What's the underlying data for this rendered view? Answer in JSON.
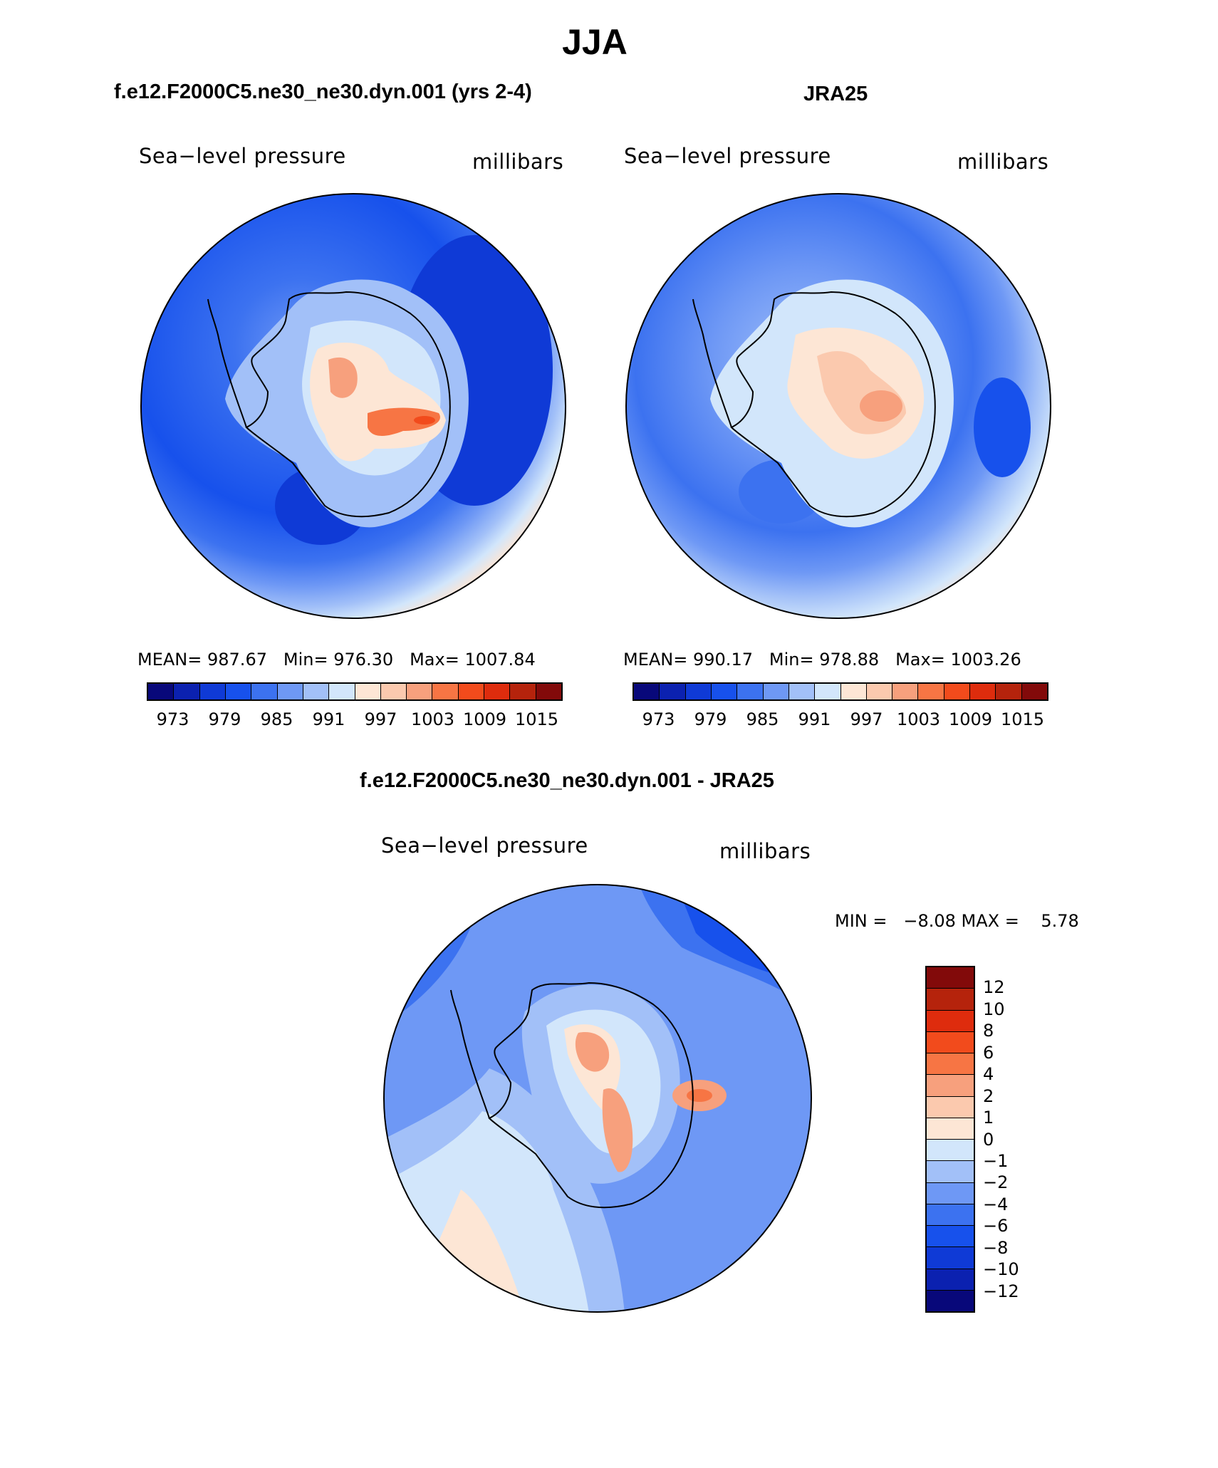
{
  "figure": {
    "title": "JJA"
  },
  "panels": [
    {
      "title": "f.e12.F2000C5.ne30_ne30.dyn.001 (yrs 2-4)",
      "left_label": "Sea−level pressure",
      "right_label": "millibars",
      "stats": {
        "mean_label": "MEAN=",
        "mean": "987.67",
        "min_label": "Min=",
        "min": "976.30",
        "max_label": "Max=",
        "max": "1007.84"
      }
    },
    {
      "title": "JRA25",
      "left_label": "Sea−level pressure",
      "right_label": "millibars",
      "stats": {
        "mean_label": "MEAN=",
        "mean": "990.17",
        "min_label": "Min=",
        "min": "978.88",
        "max_label": "Max=",
        "max": "1003.26"
      }
    },
    {
      "title": "f.e12.F2000C5.ne30_ne30.dyn.001 - JRA25",
      "left_label": "Sea−level pressure",
      "right_label": "millibars",
      "stats_text": "MIN =   −8.08 MAX =    5.78"
    }
  ],
  "colorbar_abs": {
    "tick_labels": [
      "973",
      "979",
      "985",
      "991",
      "997",
      "1003",
      "1009",
      "1015"
    ],
    "colors": [
      "#08087a",
      "#0b21b0",
      "#0f3ad6",
      "#1751ec",
      "#3c72f0",
      "#6e98f5",
      "#a2c0f8",
      "#d2e6fb",
      "#fde6d5",
      "#fbc9ae",
      "#f7a07d",
      "#f77544",
      "#f24b1c",
      "#de2c0d",
      "#b5230c",
      "#820a0a"
    ]
  },
  "colorbar_diff": {
    "tick_labels": [
      "12",
      "10",
      "8",
      "6",
      "4",
      "2",
      "1",
      "0",
      "−1",
      "−2",
      "−4",
      "−6",
      "−8",
      "−10",
      "−12"
    ],
    "colors": [
      "#820a0a",
      "#b5230c",
      "#de2c0d",
      "#f24b1c",
      "#f77544",
      "#f7a07d",
      "#fbc9ae",
      "#fde6d5",
      "#d2e6fb",
      "#a2c0f8",
      "#6e98f5",
      "#3c72f0",
      "#1751ec",
      "#0f3ad6",
      "#0b21b0",
      "#08087a"
    ]
  },
  "chart_data": [
    {
      "type": "heatmap",
      "title": "f.e12.F2000C5.ne30_ne30.dyn.001 (yrs 2-4)",
      "variable": "Sea−level pressure",
      "units": "millibars",
      "projection": "south polar stereographic",
      "mean": 987.67,
      "min": 976.3,
      "max": 1007.84,
      "contour_levels": [
        973,
        976,
        979,
        982,
        985,
        988,
        991,
        994,
        997,
        1000,
        1003,
        1006,
        1009,
        1012,
        1015
      ]
    },
    {
      "type": "heatmap",
      "title": "JRA25",
      "variable": "Sea−level pressure",
      "units": "millibars",
      "projection": "south polar stereographic",
      "mean": 990.17,
      "min": 978.88,
      "max": 1003.26,
      "contour_levels": [
        973,
        976,
        979,
        982,
        985,
        988,
        991,
        994,
        997,
        1000,
        1003,
        1006,
        1009,
        1012,
        1015
      ]
    },
    {
      "type": "heatmap",
      "title": "f.e12.F2000C5.ne30_ne30.dyn.001 - JRA25",
      "variable": "Sea−level pressure",
      "units": "millibars",
      "projection": "south polar stereographic",
      "min": -8.08,
      "max": 5.78,
      "contour_levels": [
        -12,
        -10,
        -8,
        -6,
        -4,
        -2,
        -1,
        0,
        1,
        2,
        4,
        6,
        8,
        10,
        12
      ]
    }
  ]
}
